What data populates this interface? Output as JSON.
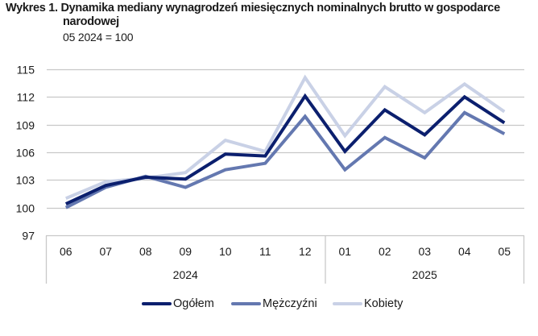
{
  "header": {
    "title_prefix": "Wykres 1.",
    "title_line1": "Dynamika mediany wynagrodzeń miesięcznych nominalnych brutto w gospodarce",
    "title_line2": "narodowej",
    "subtitle": "05 2024 = 100"
  },
  "legend": {
    "items": [
      {
        "label": "Ogółem",
        "color": "#0b1f6e"
      },
      {
        "label": "Mężczyźni",
        "color": "#6478b0"
      },
      {
        "label": "Kobiety",
        "color": "#c9d1e6"
      }
    ]
  },
  "chart_data": {
    "type": "line",
    "title": "Wykres 1. Dynamika mediany wynagrodzeń miesięcznych nominalnych brutto w gospodarce narodowej",
    "subtitle": "05 2024 = 100",
    "xlabel": "",
    "ylabel": "",
    "categories": [
      "06",
      "07",
      "08",
      "09",
      "10",
      "11",
      "12",
      "01",
      "02",
      "03",
      "04",
      "05"
    ],
    "category_groups": [
      {
        "label": "2024",
        "span": [
          0,
          6
        ]
      },
      {
        "label": "2025",
        "span": [
          7,
          11
        ]
      }
    ],
    "x": [
      "06 2024",
      "07 2024",
      "08 2024",
      "09 2024",
      "10 2024",
      "11 2024",
      "12 2024",
      "01 2025",
      "02 2025",
      "03 2025",
      "04 2025",
      "05 2025"
    ],
    "yticks": [
      97,
      100,
      103,
      106,
      109,
      112,
      115
    ],
    "ylim": [
      97,
      115
    ],
    "grid": true,
    "legend_position": "bottom",
    "series": [
      {
        "name": "Ogółem",
        "color": "#0b1f6e",
        "values": [
          100.4,
          102.4,
          103.3,
          103.1,
          105.8,
          105.6,
          112.1,
          106.1,
          110.6,
          107.9,
          112.0,
          109.2
        ]
      },
      {
        "name": "Mężczyźni",
        "color": "#6478b0",
        "values": [
          100.0,
          102.2,
          103.4,
          102.2,
          104.1,
          104.8,
          109.9,
          104.1,
          107.6,
          105.4,
          110.3,
          108.0
        ]
      },
      {
        "name": "Kobiety",
        "color": "#c9d1e6",
        "values": [
          101.0,
          102.8,
          103.2,
          103.8,
          107.3,
          106.1,
          114.1,
          107.8,
          113.1,
          110.3,
          113.4,
          110.4
        ]
      }
    ]
  }
}
